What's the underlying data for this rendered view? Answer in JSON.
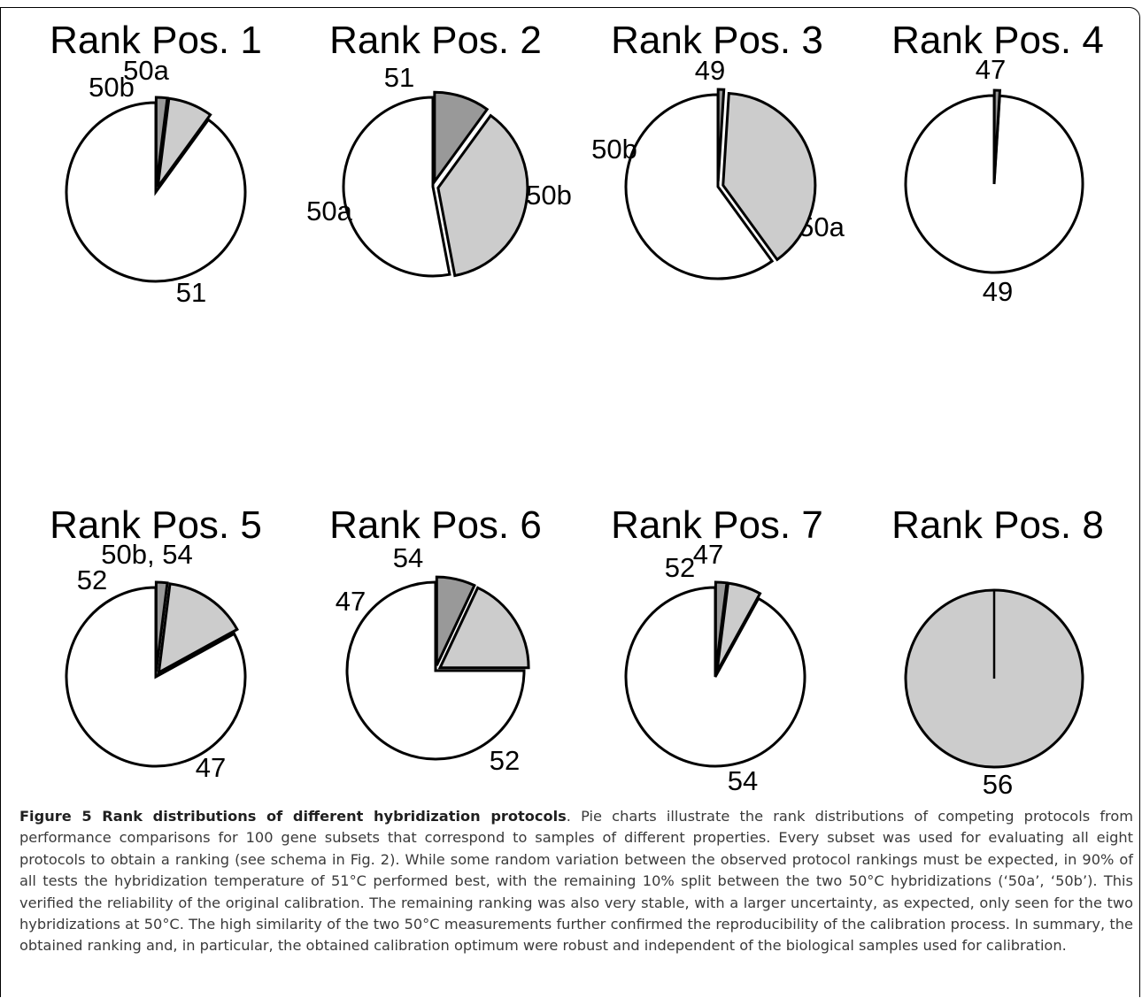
{
  "chart_data": [
    {
      "type": "pie",
      "title": "Rank Pos. 1",
      "slices": [
        {
          "label": "51",
          "value": 90,
          "color": "#ffffff"
        },
        {
          "label": "50b",
          "value": 8,
          "color": "#cccccc"
        },
        {
          "label": "50a",
          "value": 2,
          "color": "#999999"
        }
      ]
    },
    {
      "type": "pie",
      "title": "Rank Pos. 2",
      "slices": [
        {
          "label": "50b",
          "value": 53,
          "color": "#ffffff"
        },
        {
          "label": "50a",
          "value": 37,
          "color": "#cccccc"
        },
        {
          "label": "51",
          "value": 10,
          "color": "#999999"
        }
      ]
    },
    {
      "type": "pie",
      "title": "Rank Pos. 3",
      "slices": [
        {
          "label": "50a",
          "value": 60,
          "color": "#ffffff"
        },
        {
          "label": "50b",
          "value": 39,
          "color": "#cccccc"
        },
        {
          "label": "49",
          "value": 1,
          "color": "#999999"
        }
      ]
    },
    {
      "type": "pie",
      "title": "Rank Pos. 4",
      "slices": [
        {
          "label": "49",
          "value": 99,
          "color": "#ffffff"
        },
        {
          "label": "47",
          "value": 1,
          "color": "#999999"
        }
      ]
    },
    {
      "type": "pie",
      "title": "Rank Pos. 5",
      "slices": [
        {
          "label": "47",
          "value": 83,
          "color": "#ffffff"
        },
        {
          "label": "52",
          "value": 15,
          "color": "#cccccc"
        },
        {
          "label": "50b, 54",
          "value": 2,
          "color": "#999999"
        }
      ]
    },
    {
      "type": "pie",
      "title": "Rank Pos. 6",
      "slices": [
        {
          "label": "52",
          "value": 75,
          "color": "#ffffff"
        },
        {
          "label": "47",
          "value": 18,
          "color": "#cccccc"
        },
        {
          "label": "54",
          "value": 7,
          "color": "#999999"
        }
      ]
    },
    {
      "type": "pie",
      "title": "Rank Pos. 7",
      "slices": [
        {
          "label": "54",
          "value": 92,
          "color": "#ffffff"
        },
        {
          "label": "52",
          "value": 6,
          "color": "#cccccc"
        },
        {
          "label": "47",
          "value": 2,
          "color": "#999999"
        }
      ]
    },
    {
      "type": "pie",
      "title": "Rank Pos. 8",
      "slices": [
        {
          "label": "56",
          "value": 100,
          "color": "#cccccc"
        }
      ]
    }
  ],
  "caption": {
    "title": "Figure 5 Rank distributions of different hybridization protocols",
    "text": ". Pie charts illustrate the rank distributions of competing protocols from performance comparisons for 100 gene subsets that correspond to samples of different properties. Every subset was used for evaluating all eight protocols to obtain a ranking (see schema in Fig. 2). While some random variation between the observed protocol rankings must be expected, in 90% of all tests the hybridization temperature of 51°C performed best, with the remaining 10% split between the two 50°C hybridizations (‘50a’, ‘50b’). This verified the reliability of the original calibration. The remaining ranking was also very stable, with a larger uncertainty, as expected, only seen for the two hybridizations at 50°C. The high similarity of the two 50°C measurements further confirmed the reproducibility of the calibration process. In summary, the obtained ranking and, in particular, the obtained calibration optimum were robust and independent of the biological samples used for calibration."
  }
}
